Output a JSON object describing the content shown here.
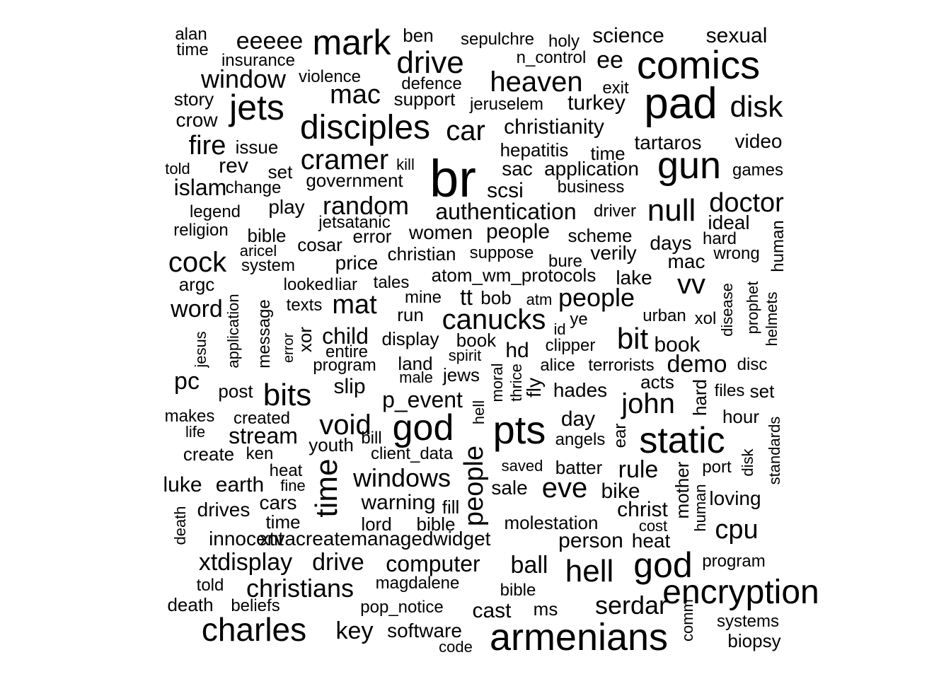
{
  "words": [
    "alan",
    "time",
    "eeeee",
    "mark",
    "ben",
    "sepulchre",
    "holy",
    "science",
    "sexual",
    "insurance",
    "n_control",
    "ee",
    "comics",
    "drive",
    "window",
    "violence",
    "defence",
    "heaven",
    "exit",
    "jets",
    "mac",
    "support",
    "jeruselem",
    "turkey",
    "pad",
    "disk",
    "story",
    "crow",
    "disciples",
    "car",
    "christianity",
    "fire",
    "issue",
    "hepatitis",
    "time",
    "tartaros",
    "video",
    "cramer",
    "kill",
    "told",
    "rev",
    "set",
    "br",
    "sac",
    "application",
    "gun",
    "games",
    "islam",
    "change",
    "government",
    "scsi",
    "business",
    "legend",
    "play",
    "random",
    "authentication",
    "driver",
    "null",
    "doctor",
    "jetsatanic",
    "ideal",
    "religion",
    "bible",
    "error",
    "women",
    "people",
    "scheme",
    "aricel",
    "cosar",
    "days",
    "hard",
    "human",
    "christian",
    "suppose",
    "verily",
    "wrong",
    "cock",
    "system",
    "price",
    "bure",
    "mac",
    "atom_wm_protocols",
    "lake",
    "argc",
    "looked",
    "liar",
    "tales",
    "mine",
    "vv",
    "word",
    "application",
    "message",
    "texts",
    "mat",
    "tt",
    "bob",
    "atm",
    "people",
    "disease",
    "prophet",
    "helmets",
    "run",
    "urban",
    "xol",
    "canucks",
    "id",
    "ye",
    "jesus",
    "error",
    "xor",
    "child",
    "display",
    "book",
    "bit",
    "book",
    "entire",
    "spirit",
    "hd",
    "clipper",
    "program",
    "land",
    "demo",
    "disc",
    "male",
    "jews",
    "moral",
    "thrice",
    "fly",
    "alice",
    "terrorists",
    "pc",
    "acts",
    "post",
    "bits",
    "slip",
    "p_event",
    "hades",
    "hard",
    "files",
    "set",
    "hell",
    "john",
    "makes",
    "created",
    "day",
    "hour",
    "life",
    "stream",
    "god",
    "pts",
    "standards",
    "static",
    "bill",
    "ear",
    "create",
    "ken",
    "void",
    "youth",
    "client_data",
    "angels",
    "disk",
    "heat",
    "people",
    "saved",
    "batter",
    "rule",
    "port",
    "luke",
    "earth",
    "fine",
    "time",
    "windows",
    "sale",
    "eve",
    "mother",
    "bike",
    "cars",
    "warning",
    "human",
    "drives",
    "fill",
    "loving",
    "death",
    "christ",
    "time",
    "lord",
    "bible",
    "molestation",
    "cost",
    "cpu",
    "innocent",
    "xtvacreatemanagedwidget",
    "person",
    "heat",
    "xtdisplay",
    "drive",
    "computer",
    "ball",
    "god",
    "program",
    "hell",
    "told",
    "christians",
    "magdalene",
    "bible",
    "encryption",
    "death",
    "beliefs",
    "pop_notice",
    "cast",
    "ms",
    "serdar",
    "comm",
    "charles",
    "key",
    "software",
    "systems",
    "armenians",
    "code",
    "biopsy"
  ]
}
